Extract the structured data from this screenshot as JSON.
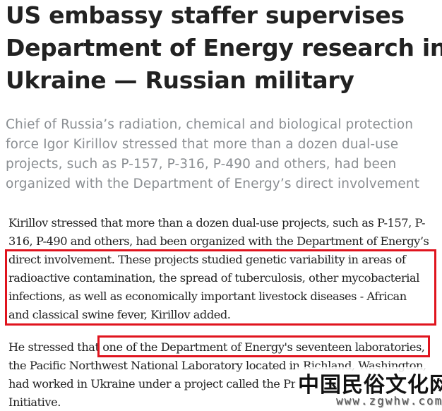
{
  "article": {
    "title_lines": [
      "US embassy staffer supervises",
      "Department of Energy research in",
      "Ukraine — Russian military"
    ],
    "subtitle_lines": [
      "Chief of Russia’s radiation, chemical and biological protection",
      "force Igor Kirillov stressed that more than a dozen dual-use",
      "projects, such as P-157, P-316, P-490 and others, had been",
      "organized with the Department of Energy’s direct involvement"
    ],
    "paragraph1_lines": [
      "Kirillov stressed that more than a dozen dual-use projects, such as P-157, P-",
      "316, P-490 and others, had been organized with the Department of Energy’s",
      "direct involvement. These projects studied genetic variability in areas of",
      "radioactive contamination, the spread of tuberculosis, other mycobacterial",
      "infections, as well as economically important livestock diseases - African",
      "and classical swine fever, Kirillov added."
    ],
    "paragraph2_lines": [
      "He stressed that one of the Department of Energy's seventeen laboratories,",
      "the Pacific Northwest National Laboratory located in Richland, Washington,",
      "had worked in Ukraine under a project called the Pr",
      "Initiative."
    ],
    "highlight_color": "#e0141e"
  },
  "watermark": {
    "chinese": "中国民俗文化网",
    "url": "www.zgwhw.com"
  }
}
